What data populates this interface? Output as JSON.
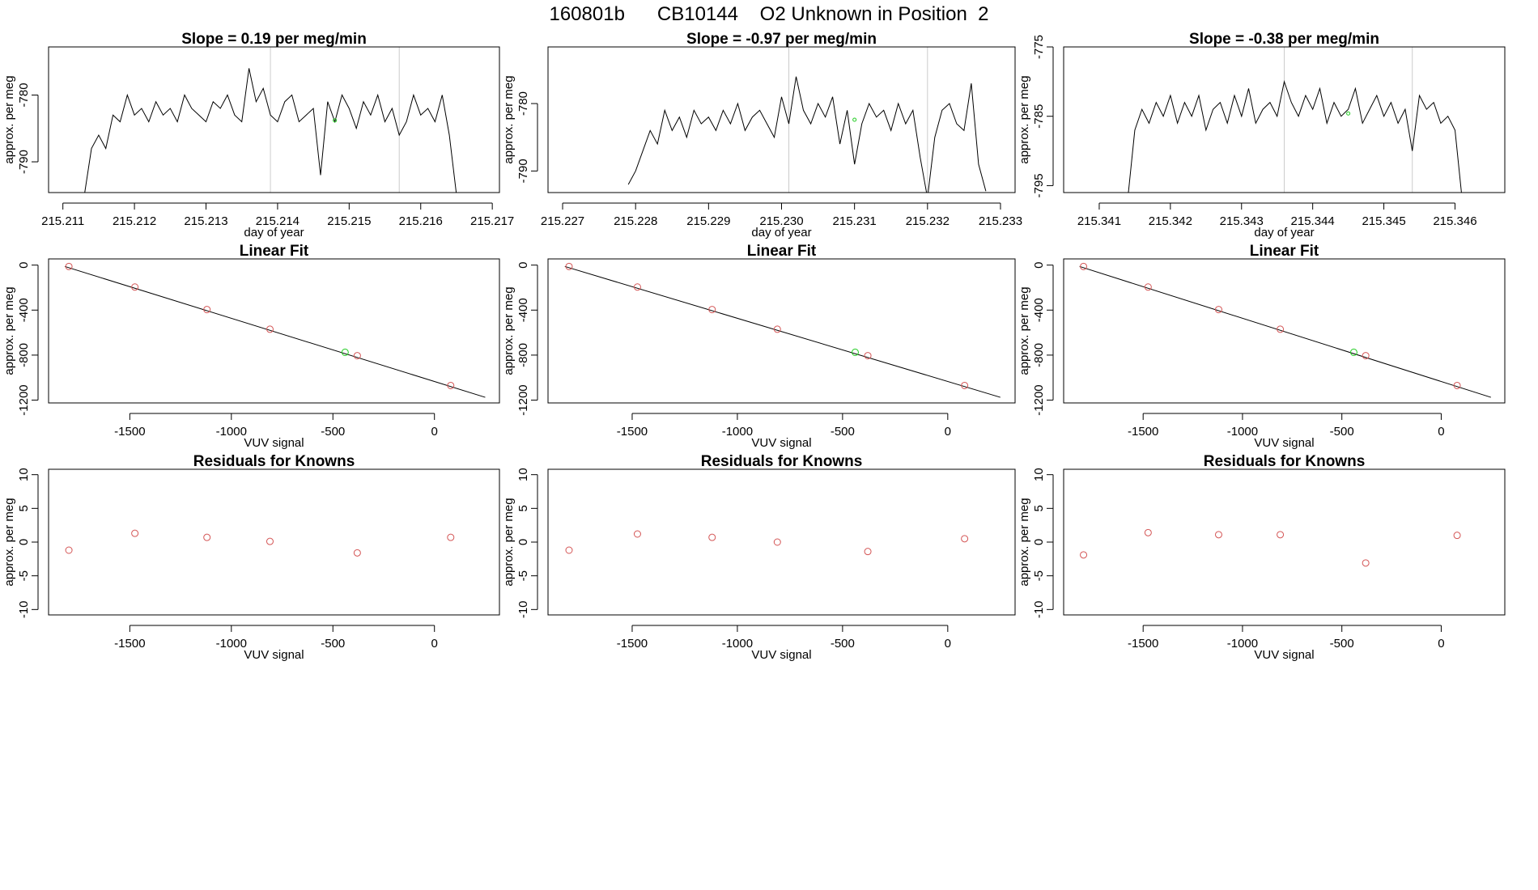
{
  "header": {
    "title": "160801b      CB10144    O2 Unknown in Position  2"
  },
  "colors": {
    "known_point": "#d45555",
    "unknown_point": "#22cc22",
    "line": "#000000",
    "frame": "#000000",
    "marker": "#cccccc"
  },
  "chart_data": [
    {
      "type": "line",
      "title": "Slope =  0.19  per meg/min",
      "xlabel": "day of year",
      "ylabel": "approx. per meg",
      "xlim": [
        215.2108,
        215.2171
      ],
      "ylim": [
        -794.6,
        -772.8
      ],
      "xticks": [
        215.211,
        215.212,
        215.213,
        215.214,
        215.215,
        215.216,
        215.217
      ],
      "xtick_labels": [
        "215.211",
        "215.212",
        "215.213",
        "215.214",
        "215.215",
        "215.216",
        "215.217"
      ],
      "yticks": [
        -780,
        -790
      ],
      "ytick_labels": [
        "-780",
        "-790"
      ],
      "markers": [
        215.2139,
        215.2157
      ],
      "unknown_point": {
        "x": 215.2148,
        "y": -783.8
      },
      "series": [
        {
          "name": "trace",
          "x": [
            215.2113,
            215.2114,
            215.2115,
            215.2116,
            215.2117,
            215.2118,
            215.2119,
            215.212,
            215.2121,
            215.2122,
            215.2123,
            215.2124,
            215.2125,
            215.2126,
            215.2127,
            215.2128,
            215.2129,
            215.213,
            215.2131,
            215.2132,
            215.2133,
            215.2134,
            215.2135,
            215.2136,
            215.2137,
            215.2138,
            215.2139,
            215.214,
            215.2141,
            215.2142,
            215.2143,
            215.2144,
            215.2145,
            215.2146,
            215.2147,
            215.2148,
            215.2149,
            215.215,
            215.2151,
            215.2152,
            215.2153,
            215.2154,
            215.2155,
            215.2156,
            215.2157,
            215.2158,
            215.2159,
            215.216,
            215.2161,
            215.2162,
            215.2163,
            215.2164,
            215.2165
          ],
          "y": [
            -795,
            -788,
            -786,
            -788,
            -783,
            -784,
            -780,
            -783,
            -782,
            -784,
            -781,
            -783,
            -782,
            -784,
            -780,
            -782,
            -783,
            -784,
            -781,
            -782,
            -780,
            -783,
            -784,
            -776,
            -781,
            -779,
            -783,
            -784,
            -781,
            -780,
            -784,
            -783,
            -782,
            -792,
            -781,
            -784,
            -780,
            -782,
            -785,
            -781,
            -783,
            -780,
            -784,
            -782,
            -786,
            -784,
            -780,
            -783,
            -782,
            -784,
            -780,
            -786,
            -795
          ]
        }
      ]
    },
    {
      "type": "line",
      "title": "Slope =  -0.97  per meg/min",
      "xlabel": "day of year",
      "ylabel": "approx. per meg",
      "xlim": [
        215.2268,
        215.2332
      ],
      "ylim": [
        -793.2,
        -771.6
      ],
      "xticks": [
        215.227,
        215.228,
        215.229,
        215.23,
        215.231,
        215.232,
        215.233
      ],
      "xtick_labels": [
        "215.227",
        "215.228",
        "215.229",
        "215.230",
        "215.231",
        "215.232",
        "215.233"
      ],
      "yticks": [
        -780,
        -790
      ],
      "ytick_labels": [
        "-780",
        "-790"
      ],
      "markers": [
        215.2301,
        215.232
      ],
      "unknown_point": {
        "x": 215.231,
        "y": -782.4
      },
      "series": [
        {
          "name": "trace",
          "x": [
            215.2279,
            215.228,
            215.2281,
            215.2282,
            215.2283,
            215.2284,
            215.2285,
            215.2286,
            215.2287,
            215.2288,
            215.2289,
            215.229,
            215.2291,
            215.2292,
            215.2293,
            215.2294,
            215.2295,
            215.2296,
            215.2297,
            215.2298,
            215.2299,
            215.23,
            215.2301,
            215.2302,
            215.2303,
            215.2304,
            215.2305,
            215.2306,
            215.2307,
            215.2308,
            215.2309,
            215.231,
            215.2311,
            215.2312,
            215.2313,
            215.2314,
            215.2315,
            215.2316,
            215.2317,
            215.2318,
            215.2319,
            215.232,
            215.2321,
            215.2322,
            215.2323,
            215.2324,
            215.2325,
            215.2326,
            215.2327,
            215.2328
          ],
          "y": [
            -792,
            -790,
            -787,
            -784,
            -786,
            -781,
            -784,
            -782,
            -785,
            -781,
            -783,
            -782,
            -784,
            -781,
            -783,
            -780,
            -784,
            -782,
            -781,
            -783,
            -785,
            -779,
            -783,
            -776,
            -781,
            -783,
            -780,
            -782,
            -779,
            -786,
            -781,
            -789,
            -783,
            -780,
            -782,
            -781,
            -784,
            -780,
            -783,
            -781,
            -788,
            -794,
            -785,
            -781,
            -780,
            -783,
            -784,
            -777,
            -789,
            -793
          ]
        }
      ]
    },
    {
      "type": "line",
      "title": "Slope =  -0.38  per meg/min",
      "xlabel": "day of year",
      "ylabel": "approx. per meg",
      "xlim": [
        215.3405,
        215.3467
      ],
      "ylim": [
        -796.0,
        -775.0
      ],
      "xticks": [
        215.341,
        215.342,
        215.343,
        215.344,
        215.345,
        215.346
      ],
      "xtick_labels": [
        "215.341",
        "215.342",
        "215.343",
        "215.344",
        "215.345",
        "215.346"
      ],
      "yticks": [
        -775,
        -785,
        -795
      ],
      "ytick_labels": [
        "-775",
        "-785",
        "-795"
      ],
      "markers": [
        215.3436,
        215.3454
      ],
      "unknown_point": {
        "x": 215.3445,
        "y": -784.6
      },
      "series": [
        {
          "name": "trace",
          "x": [
            215.3414,
            215.3415,
            215.3416,
            215.3417,
            215.3418,
            215.3419,
            215.342,
            215.3421,
            215.3422,
            215.3423,
            215.3424,
            215.3425,
            215.3426,
            215.3427,
            215.3428,
            215.3429,
            215.343,
            215.3431,
            215.3432,
            215.3433,
            215.3434,
            215.3435,
            215.3436,
            215.3437,
            215.3438,
            215.3439,
            215.344,
            215.3441,
            215.3442,
            215.3443,
            215.3444,
            215.3445,
            215.3446,
            215.3447,
            215.3448,
            215.3449,
            215.345,
            215.3451,
            215.3452,
            215.3453,
            215.3454,
            215.3455,
            215.3456,
            215.3457,
            215.3458,
            215.3459,
            215.346,
            215.3461
          ],
          "y": [
            -797,
            -787,
            -784,
            -786,
            -783,
            -785,
            -782,
            -786,
            -783,
            -785,
            -782,
            -787,
            -784,
            -783,
            -786,
            -782,
            -785,
            -781,
            -786,
            -784,
            -783,
            -785,
            -780,
            -783,
            -785,
            -782,
            -784,
            -781,
            -786,
            -783,
            -785,
            -784,
            -781,
            -786,
            -784,
            -782,
            -785,
            -783,
            -786,
            -784,
            -790,
            -782,
            -784,
            -783,
            -786,
            -785,
            -787,
            -797
          ]
        }
      ]
    },
    {
      "type": "scatter",
      "title": "Linear Fit",
      "xlabel": "VUV signal",
      "ylabel": "approx. per meg",
      "xlim": [
        -1900,
        320
      ],
      "ylim": [
        -1225,
        55
      ],
      "xticks": [
        -1500,
        -1000,
        -500,
        0
      ],
      "xtick_labels": [
        "-1500",
        "-1000",
        "-500",
        "0"
      ],
      "yticks": [
        0,
        -400,
        -800,
        -1200
      ],
      "ytick_labels": [
        "0",
        "-400",
        "-800",
        "-1200"
      ],
      "fit_line": {
        "x": [
          -1820,
          250
        ],
        "y": [
          -12,
          -1175
        ]
      },
      "knowns": {
        "x": [
          -1800,
          -1475,
          -1120,
          -810,
          -380,
          80
        ],
        "y": [
          -12,
          -195,
          -395,
          -570,
          -805,
          -1070
        ]
      },
      "unknowns": {
        "x": [
          -440
        ],
        "y": [
          -775
        ]
      }
    },
    {
      "type": "scatter",
      "title": "Linear Fit",
      "xlabel": "VUV signal",
      "ylabel": "approx. per meg",
      "xlim": [
        -1900,
        320
      ],
      "ylim": [
        -1225,
        55
      ],
      "xticks": [
        -1500,
        -1000,
        -500,
        0
      ],
      "xtick_labels": [
        "-1500",
        "-1000",
        "-500",
        "0"
      ],
      "yticks": [
        0,
        -400,
        -800,
        -1200
      ],
      "ytick_labels": [
        "0",
        "-400",
        "-800",
        "-1200"
      ],
      "fit_line": {
        "x": [
          -1820,
          250
        ],
        "y": [
          -12,
          -1175
        ]
      },
      "knowns": {
        "x": [
          -1800,
          -1475,
          -1120,
          -810,
          -380,
          80
        ],
        "y": [
          -12,
          -195,
          -395,
          -570,
          -805,
          -1070
        ]
      },
      "unknowns": {
        "x": [
          -440
        ],
        "y": [
          -775
        ]
      }
    },
    {
      "type": "scatter",
      "title": "Linear Fit",
      "xlabel": "VUV signal",
      "ylabel": "approx. per meg",
      "xlim": [
        -1900,
        320
      ],
      "ylim": [
        -1225,
        55
      ],
      "xticks": [
        -1500,
        -1000,
        -500,
        0
      ],
      "xtick_labels": [
        "-1500",
        "-1000",
        "-500",
        "0"
      ],
      "yticks": [
        0,
        -400,
        -800,
        -1200
      ],
      "ytick_labels": [
        "0",
        "-400",
        "-800",
        "-1200"
      ],
      "fit_line": {
        "x": [
          -1820,
          250
        ],
        "y": [
          -12,
          -1175
        ]
      },
      "knowns": {
        "x": [
          -1800,
          -1475,
          -1120,
          -810,
          -380,
          80
        ],
        "y": [
          -12,
          -195,
          -395,
          -570,
          -805,
          -1070
        ]
      },
      "unknowns": {
        "x": [
          -440
        ],
        "y": [
          -775
        ]
      }
    },
    {
      "type": "scatter",
      "title": "Residuals for Knowns",
      "xlabel": "VUV signal",
      "ylabel": "approx. per meg",
      "xlim": [
        -1900,
        320
      ],
      "ylim": [
        -10.8,
        10.8
      ],
      "xticks": [
        -1500,
        -1000,
        -500,
        0
      ],
      "xtick_labels": [
        "-1500",
        "-1000",
        "-500",
        "0"
      ],
      "yticks": [
        10,
        5,
        0,
        -5,
        -10
      ],
      "ytick_labels": [
        "10",
        "5",
        "0",
        "-5",
        "-10"
      ],
      "knowns": {
        "x": [
          -1800,
          -1475,
          -1120,
          -810,
          -380,
          80
        ],
        "y": [
          -1.2,
          1.3,
          0.7,
          0.1,
          -1.6,
          0.7
        ]
      }
    },
    {
      "type": "scatter",
      "title": "Residuals for Knowns",
      "xlabel": "VUV signal",
      "ylabel": "approx. per meg",
      "xlim": [
        -1900,
        320
      ],
      "ylim": [
        -10.8,
        10.8
      ],
      "xticks": [
        -1500,
        -1000,
        -500,
        0
      ],
      "xtick_labels": [
        "-1500",
        "-1000",
        "-500",
        "0"
      ],
      "yticks": [
        10,
        5,
        0,
        -5,
        -10
      ],
      "ytick_labels": [
        "10",
        "5",
        "0",
        "-5",
        "-10"
      ],
      "knowns": {
        "x": [
          -1800,
          -1475,
          -1120,
          -810,
          -380,
          80
        ],
        "y": [
          -1.2,
          1.2,
          0.7,
          0.0,
          -1.4,
          0.5
        ]
      }
    },
    {
      "type": "scatter",
      "title": "Residuals for Knowns",
      "xlabel": "VUV signal",
      "ylabel": "approx. per meg",
      "xlim": [
        -1900,
        320
      ],
      "ylim": [
        -10.8,
        10.8
      ],
      "xticks": [
        -1500,
        -1000,
        -500,
        0
      ],
      "xtick_labels": [
        "-1500",
        "-1000",
        "-500",
        "0"
      ],
      "yticks": [
        10,
        5,
        0,
        -5,
        -10
      ],
      "ytick_labels": [
        "10",
        "5",
        "0",
        "-5",
        "-10"
      ],
      "knowns": {
        "x": [
          -1800,
          -1475,
          -1120,
          -810,
          -380,
          80
        ],
        "y": [
          -1.9,
          1.4,
          1.1,
          1.1,
          -3.1,
          1.0
        ]
      }
    }
  ]
}
